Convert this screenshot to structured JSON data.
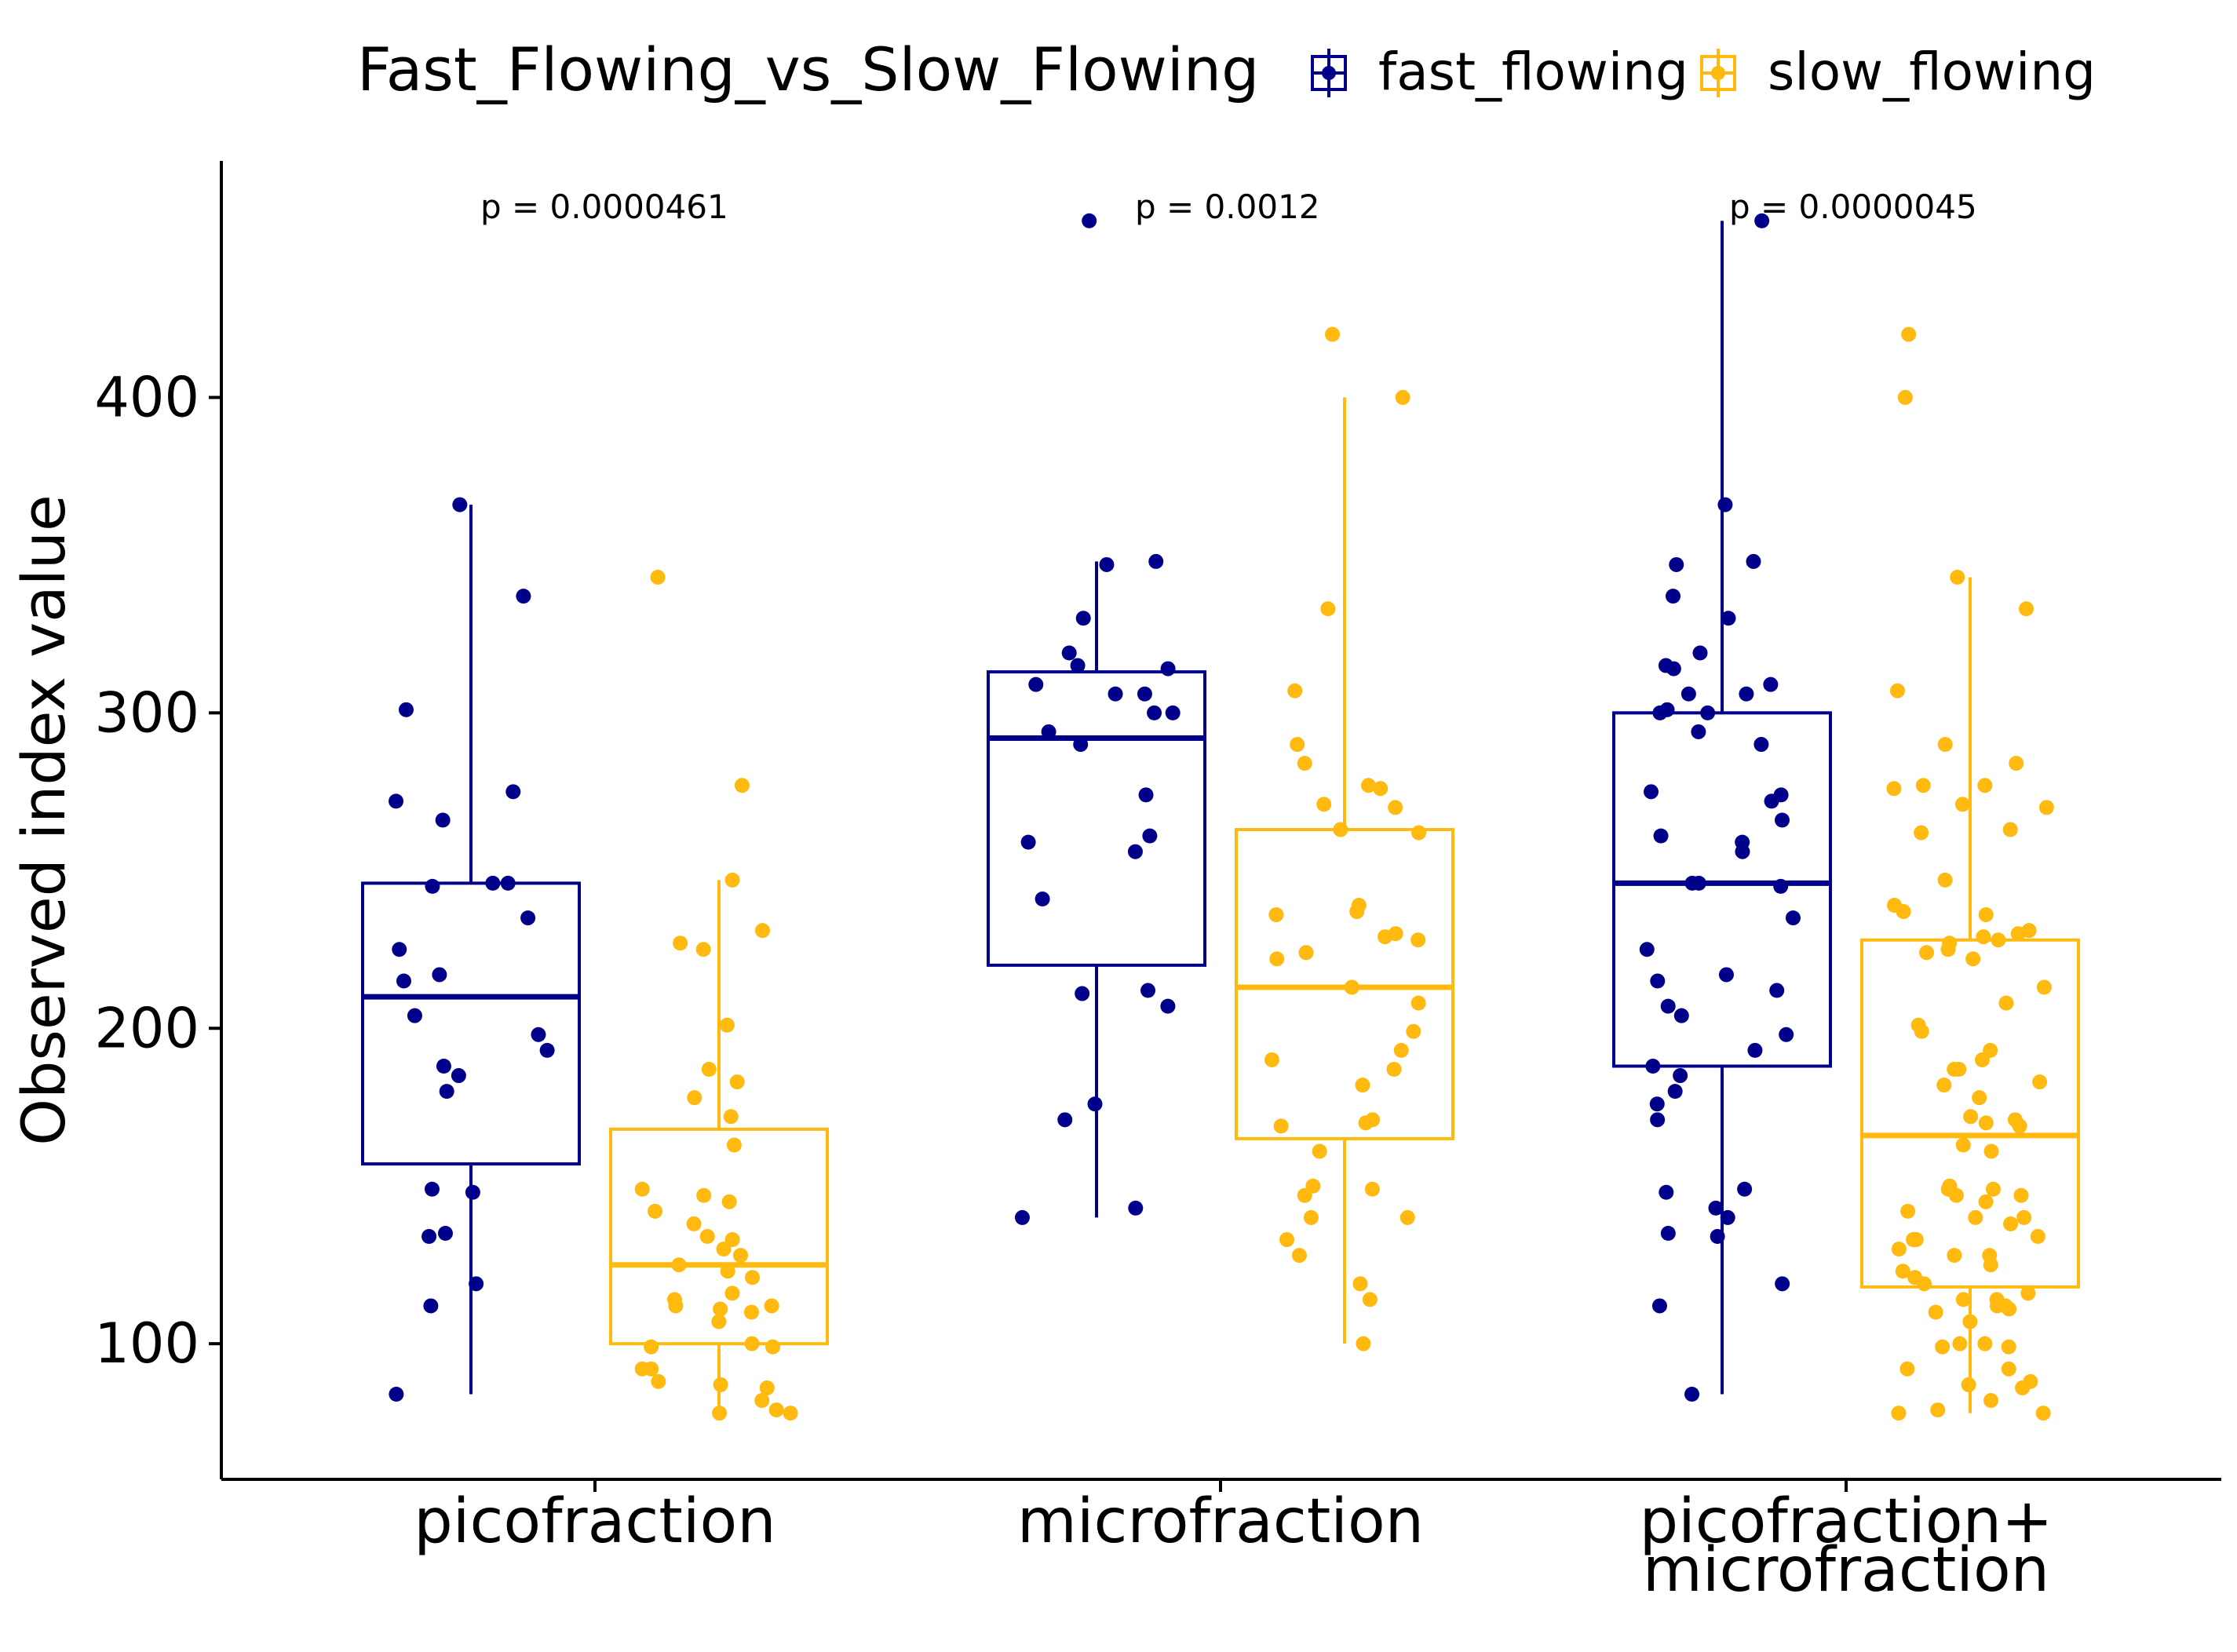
{
  "chart_data": {
    "type": "box",
    "ylabel": "Observed index value",
    "xlabel": "",
    "ylim": [
      57,
      475
    ],
    "yticks": [
      100,
      200,
      300,
      400
    ],
    "categories": [
      {
        "lines": [
          "picofraction"
        ]
      },
      {
        "lines": [
          "microfraction"
        ]
      },
      {
        "lines": [
          "picofraction+",
          "microfraction"
        ]
      }
    ],
    "legend": {
      "title": "Fast_Flowing_vs_Slow_Flowing",
      "position": "top",
      "entries": [
        {
          "label": "fast_flowing",
          "color": "#00008B"
        },
        {
          "label": "slow_flowing",
          "color": "#FFB90F"
        }
      ]
    },
    "annotations": [
      "p = 0.0000461",
      "p = 0.0012",
      "p = 0.0000045"
    ],
    "series": [
      {
        "name": "fast_flowing",
        "color": "#00008B",
        "boxes": [
          {
            "whisker_low": 84,
            "q1": 157,
            "median": 210,
            "q3": 246,
            "whisker_high": 366
          },
          {
            "whisker_low": 140,
            "q1": 220,
            "median": 292,
            "q3": 313,
            "whisker_high": 348
          },
          {
            "whisker_low": 84,
            "q1": 188,
            "median": 246,
            "q3": 300,
            "whisker_high": 456
          }
        ],
        "points": [
          [
            366,
            337,
            301,
            275,
            272,
            266,
            246,
            246,
            245,
            235,
            225,
            217,
            215,
            204,
            198,
            193,
            188,
            185,
            180,
            149,
            148,
            135,
            134,
            119,
            112,
            84
          ],
          [
            456,
            348,
            347,
            330,
            319,
            315,
            314,
            309,
            306,
            306,
            300,
            300,
            294,
            290,
            274,
            261,
            259,
            256,
            241,
            212,
            211,
            207,
            176,
            171,
            143,
            140
          ],
          [
            456,
            366,
            348,
            347,
            337,
            330,
            319,
            315,
            314,
            309,
            306,
            306,
            301,
            300,
            300,
            294,
            290,
            275,
            274,
            272,
            266,
            261,
            259,
            256,
            246,
            246,
            245,
            235,
            225,
            217,
            215,
            212,
            207,
            204,
            198,
            193,
            188,
            185,
            180,
            176,
            171,
            149,
            148,
            143,
            140,
            135,
            134,
            119,
            112,
            84
          ]
        ]
      },
      {
        "name": "slow_flowing",
        "color": "#FFB90F",
        "boxes": [
          {
            "whisker_low": 78,
            "q1": 100,
            "median": 125,
            "q3": 168,
            "whisker_high": 247
          },
          {
            "whisker_low": 100,
            "q1": 165,
            "median": 213,
            "q3": 263,
            "whisker_high": 400
          },
          {
            "whisker_low": 78,
            "q1": 118,
            "median": 166,
            "q3": 228,
            "whisker_high": 343
          }
        ],
        "points": [
          [
            343,
            277,
            247,
            231,
            227,
            225,
            201,
            187,
            183,
            178,
            172,
            163,
            149,
            147,
            145,
            142,
            138,
            134,
            133,
            130,
            128,
            125,
            123,
            121,
            116,
            114,
            112,
            112,
            111,
            110,
            107,
            100,
            99,
            99,
            92,
            92,
            88,
            87,
            86,
            82,
            79,
            78,
            78
          ],
          [
            420,
            400,
            333,
            307,
            290,
            284,
            277,
            276,
            271,
            270,
            263,
            262,
            239,
            237,
            236,
            230,
            229,
            228,
            224,
            222,
            213,
            208,
            199,
            193,
            190,
            187,
            182,
            171,
            170,
            169,
            161,
            150,
            149,
            147,
            140,
            140,
            133,
            128,
            119,
            114,
            100
          ],
          [
            420,
            400,
            343,
            333,
            307,
            290,
            284,
            277,
            277,
            276,
            271,
            270,
            263,
            262,
            247,
            239,
            237,
            236,
            231,
            230,
            229,
            228,
            227,
            225,
            224,
            222,
            213,
            208,
            201,
            199,
            193,
            190,
            187,
            187,
            183,
            182,
            178,
            172,
            171,
            170,
            169,
            163,
            161,
            150,
            149,
            149,
            147,
            147,
            145,
            142,
            140,
            140,
            138,
            134,
            133,
            133,
            130,
            128,
            128,
            125,
            123,
            121,
            119,
            116,
            114,
            114,
            112,
            112,
            111,
            110,
            107,
            100,
            100,
            99,
            99,
            92,
            92,
            88,
            87,
            86,
            82,
            79,
            78,
            78
          ]
        ]
      }
    ]
  }
}
